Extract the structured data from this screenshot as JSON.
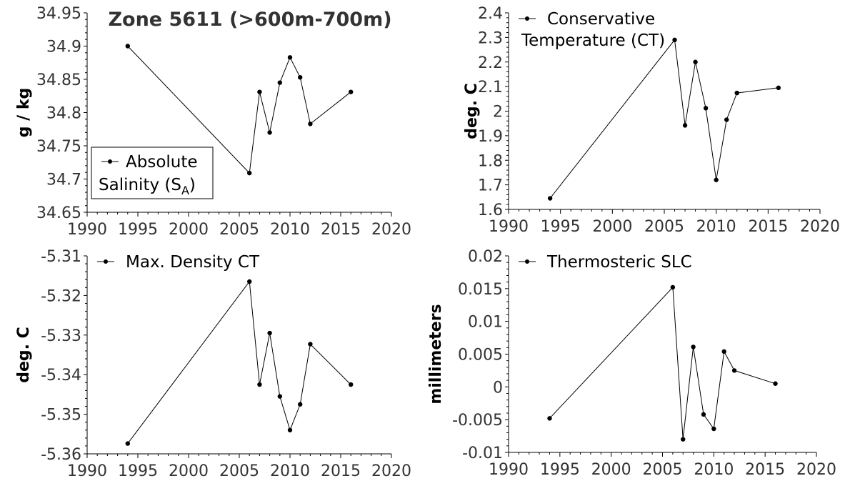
{
  "chart_data": [
    {
      "type": "line",
      "title": "Zone 5611 (>600m-700m)",
      "xlabel": "",
      "ylabel": "g / kg",
      "xlim": [
        1990,
        2020
      ],
      "ylim": [
        34.65,
        34.95
      ],
      "xticks": [
        "1990",
        "1995",
        "2000",
        "2005",
        "2010",
        "2015",
        "2020"
      ],
      "yticks": [
        "34.65",
        "34.7",
        "34.75",
        "34.8",
        "34.85",
        "34.9",
        "34.95"
      ],
      "legend": {
        "line1": "Absolute",
        "line2": "Salinity (S",
        "sub": "A",
        "suffix": ")",
        "boxed": true,
        "position": "bottom-left"
      },
      "series": [
        {
          "name": "Absolute Salinity (SA)",
          "x": [
            1994,
            2006,
            2007,
            2008,
            2009,
            2010,
            2011,
            2012,
            2016
          ],
          "y": [
            34.9,
            34.709,
            34.831,
            34.77,
            34.845,
            34.883,
            34.853,
            34.783,
            34.831
          ]
        }
      ]
    },
    {
      "type": "line",
      "title": "",
      "xlabel": "",
      "ylabel": "deg. C",
      "xlim": [
        1990,
        2020
      ],
      "ylim": [
        1.6,
        2.4
      ],
      "xticks": [
        "1990",
        "1995",
        "2000",
        "2005",
        "2010",
        "2015",
        "2020"
      ],
      "yticks": [
        "1.6",
        "1.7",
        "1.8",
        "1.9",
        "2",
        "2.1",
        "2.2",
        "2.3",
        "2.4"
      ],
      "legend": {
        "line1": "Conservative",
        "line2": "Temperature (CT)",
        "boxed": false,
        "position": "top-left"
      },
      "series": [
        {
          "name": "Conservative Temperature (CT)",
          "x": [
            1994,
            2006,
            2007,
            2008,
            2009,
            2010,
            2011,
            2012,
            2016
          ],
          "y": [
            1.645,
            2.29,
            1.942,
            2.2,
            2.012,
            1.72,
            1.965,
            2.074,
            2.095
          ]
        }
      ]
    },
    {
      "type": "line",
      "title": "",
      "xlabel": "",
      "ylabel": "deg. C",
      "xlim": [
        1990,
        2020
      ],
      "ylim": [
        -5.36,
        -5.31
      ],
      "xticks": [
        "1990",
        "1995",
        "2000",
        "2005",
        "2010",
        "2015",
        "2020"
      ],
      "yticks": [
        "-5.36",
        "-5.35",
        "-5.34",
        "-5.33",
        "-5.32",
        "-5.31"
      ],
      "legend": {
        "line1": "Max. Density CT",
        "boxed": false,
        "position": "top-left"
      },
      "series": [
        {
          "name": "Max. Density CT",
          "x": [
            1994,
            2006,
            2007,
            2008,
            2009,
            2010,
            2011,
            2012,
            2016
          ],
          "y": [
            -5.3574,
            -5.3165,
            -5.3425,
            -5.3295,
            -5.3455,
            -5.354,
            -5.3475,
            -5.3323,
            -5.3425
          ]
        }
      ]
    },
    {
      "type": "line",
      "title": "",
      "xlabel": "",
      "ylabel": "millimeters",
      "xlim": [
        1990,
        2020
      ],
      "ylim": [
        -0.01,
        0.02
      ],
      "xticks": [
        "1990",
        "1995",
        "2000",
        "2005",
        "2010",
        "2015",
        "2020"
      ],
      "yticks": [
        "-0.01",
        "-0.005",
        "0",
        "0.005",
        "0.01",
        "0.015",
        "0.02"
      ],
      "legend": {
        "line1": "Thermosteric SLC",
        "boxed": false,
        "position": "top-left"
      },
      "series": [
        {
          "name": "Thermosteric SLC",
          "x": [
            1994,
            2006,
            2007,
            2008,
            2009,
            2010,
            2011,
            2012,
            2016
          ],
          "y": [
            -0.0048,
            0.0152,
            -0.008,
            0.0061,
            -0.0042,
            -0.0064,
            0.0054,
            0.0025,
            0.0005
          ]
        }
      ]
    }
  ]
}
